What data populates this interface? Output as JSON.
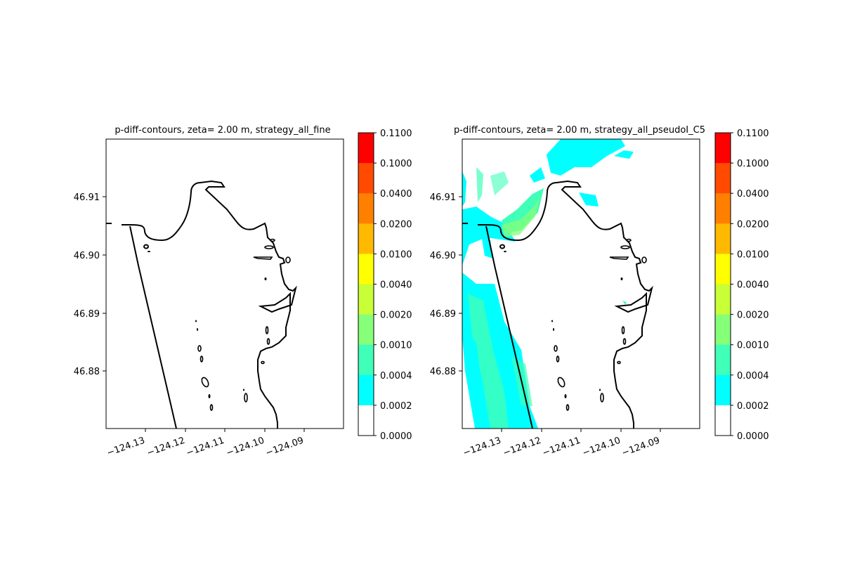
{
  "panels": [
    {
      "id": "left",
      "title": "p-diff-contours, zeta= 2.00 m, strategy_all_fine",
      "x_ticks": [
        "−124.13",
        "−124.12",
        "−124.11",
        "−124.10",
        "−124.09"
      ],
      "y_ticks": [
        "46.91",
        "46.90",
        "46.89",
        "46.88"
      ],
      "shading": "none"
    },
    {
      "id": "right",
      "title": "p-diff-contours, zeta= 2.00 m, strategy_all_pseudoI_C5",
      "x_ticks": [
        "−124.13",
        "−124.12",
        "−124.11",
        "−124.10",
        "−124.09"
      ],
      "y_ticks": [
        "46.91",
        "46.90",
        "46.89",
        "46.88"
      ],
      "shading": "cyan/green contours west of the coastline"
    }
  ],
  "colorbar": {
    "levels": [
      "0.1100",
      "0.1000",
      "0.0400",
      "0.0200",
      "0.0100",
      "0.0040",
      "0.0020",
      "0.0010",
      "0.0004",
      "0.0002",
      "0.0000"
    ],
    "colors": [
      "#ff0000",
      "#ff4a00",
      "#ff8000",
      "#ffb900",
      "#ffff00",
      "#c8ff36",
      "#86ff79",
      "#40ffb8",
      "#00ffff",
      "#ffffff"
    ]
  },
  "map": {
    "lon_ticks": [
      -124.13,
      -124.12,
      -124.11,
      -124.1,
      -124.09
    ],
    "lat_ticks": [
      46.91,
      46.9,
      46.89,
      46.88
    ]
  }
}
